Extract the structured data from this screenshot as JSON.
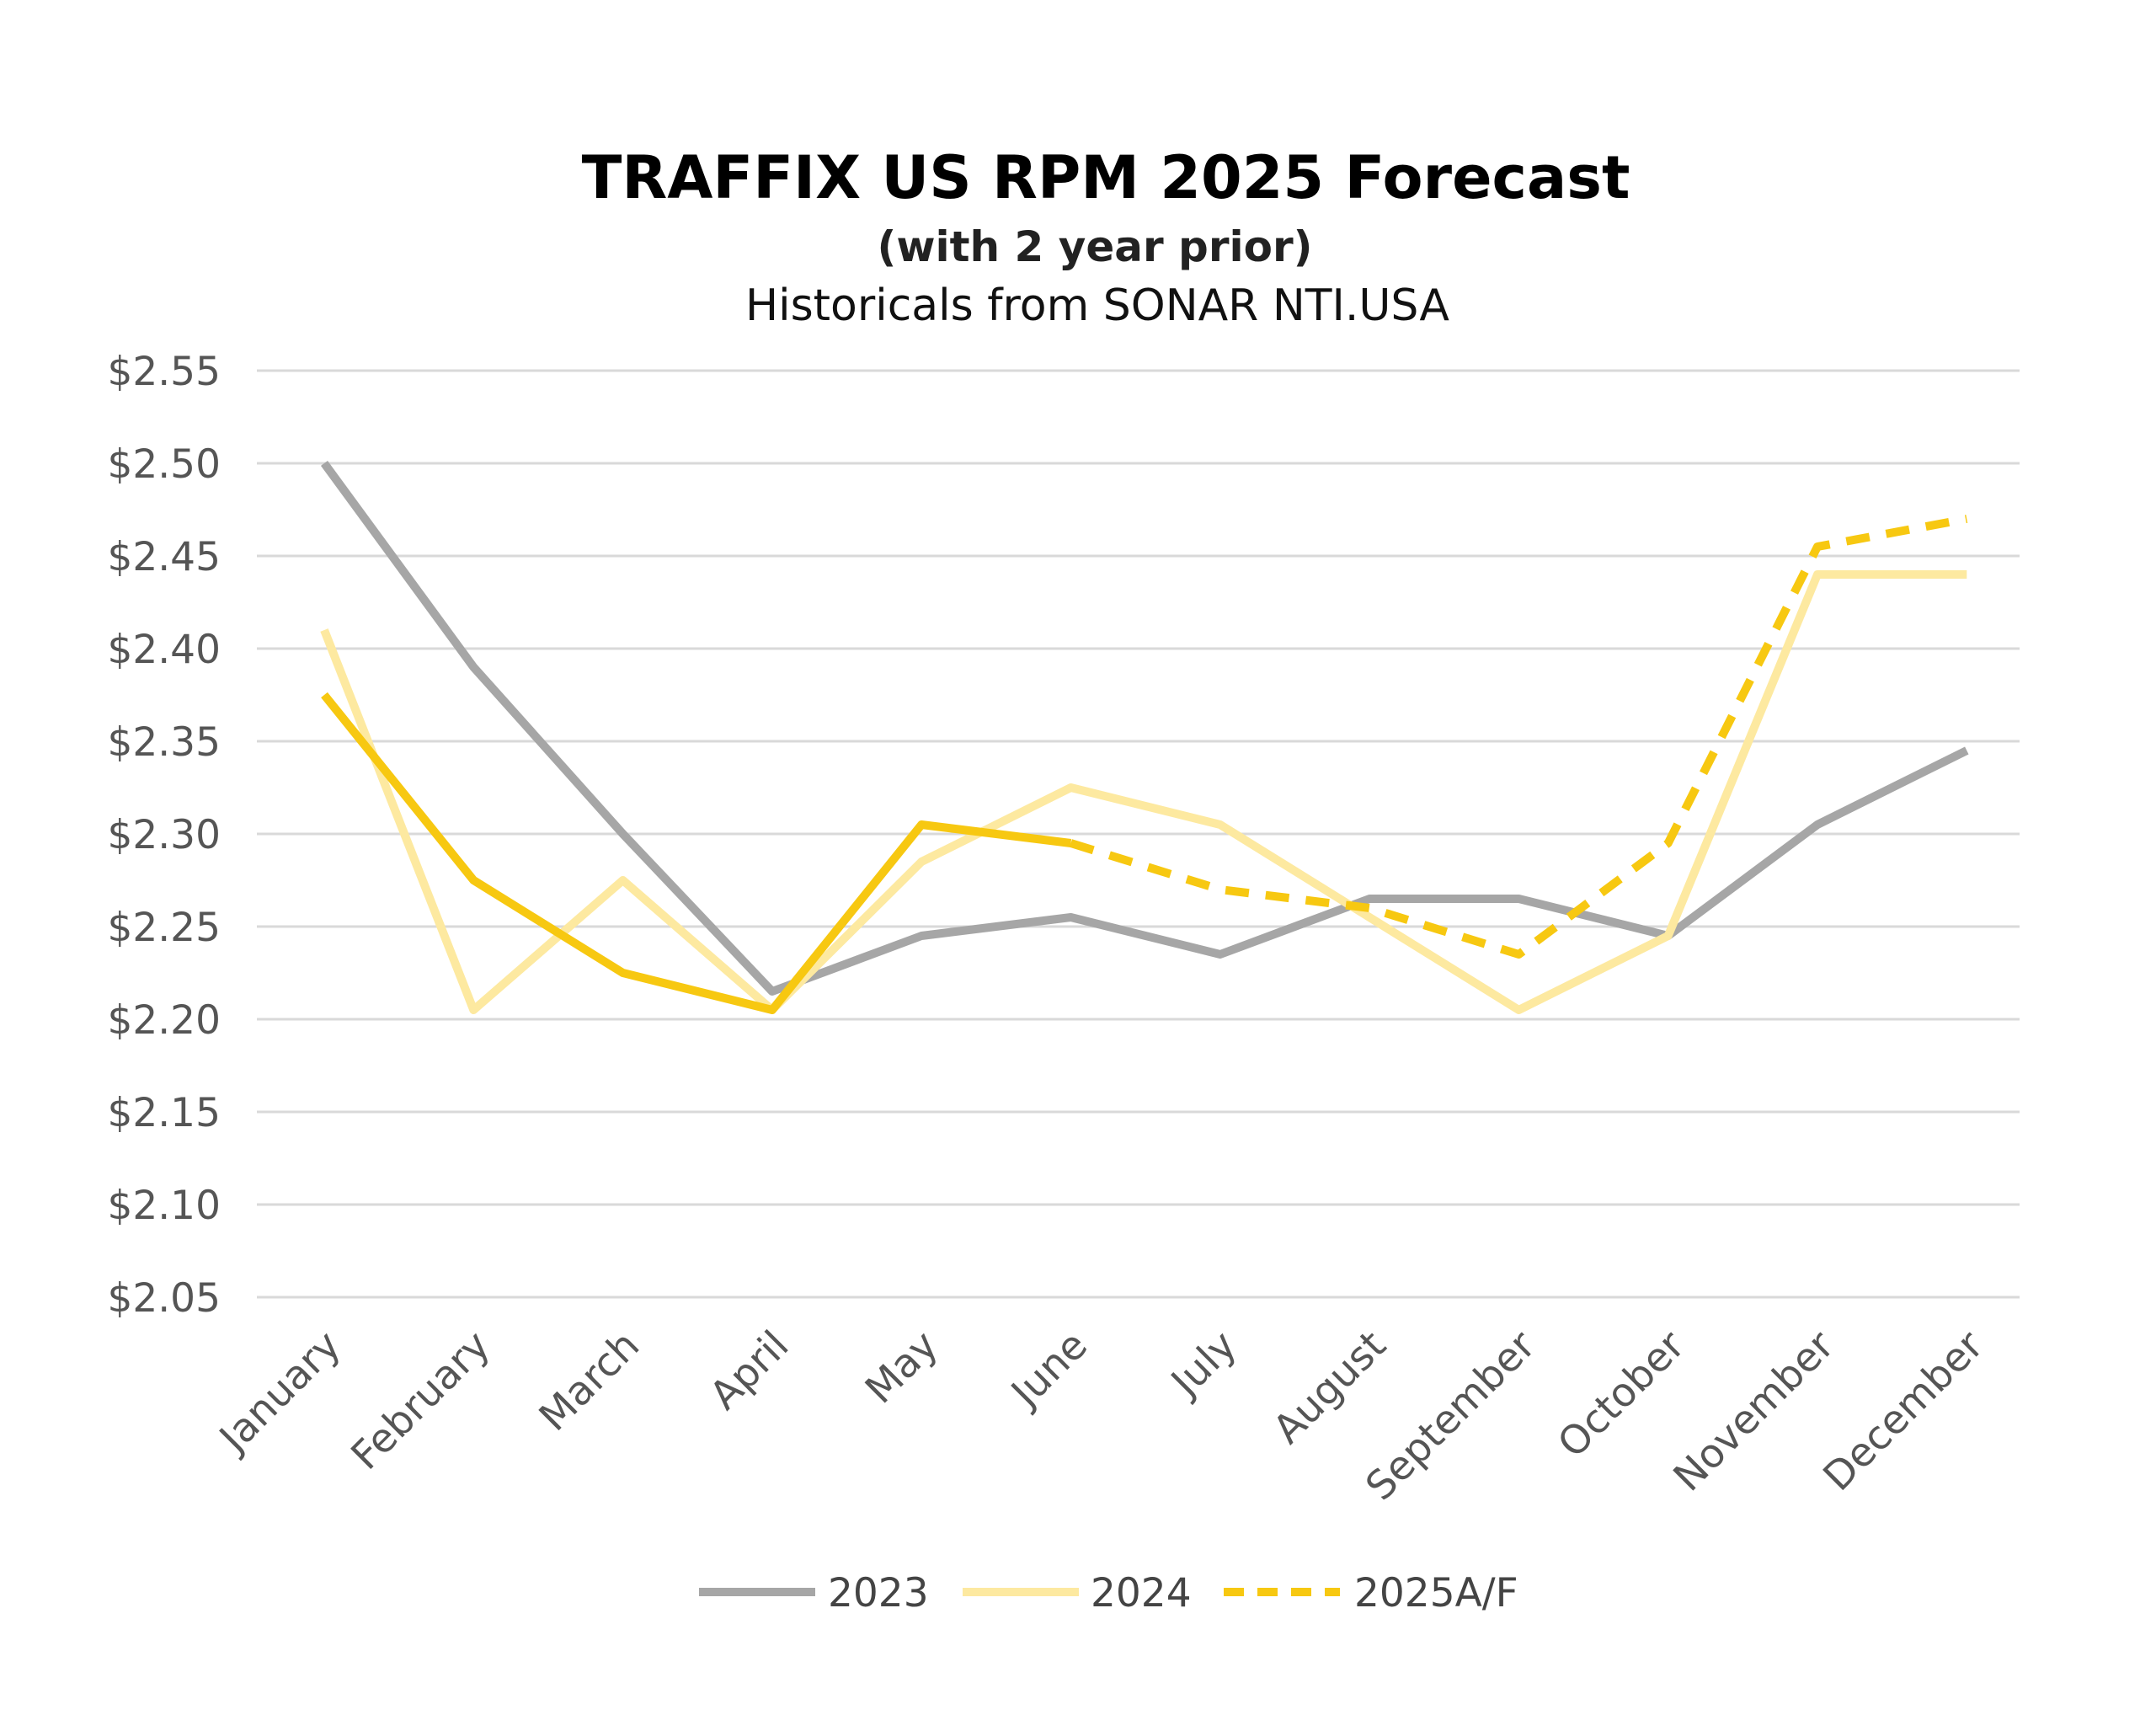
{
  "chart_data": {
    "type": "line",
    "title": "TRAFFIX US RPM 2025 Forecast",
    "subtitle": "(with 2 year prior)",
    "subtitle2": "Historicals from SONAR NTI.USA",
    "xlabel": "",
    "ylabel": "",
    "categories": [
      "January",
      "February",
      "March",
      "April",
      "May",
      "June",
      "July",
      "August",
      "September",
      "October",
      "November",
      "December"
    ],
    "ylim": [
      2.05,
      2.55
    ],
    "yticks": [
      "$2.05",
      "$2.10",
      "$2.15",
      "$2.20",
      "$2.25",
      "$2.30",
      "$2.35",
      "$2.40",
      "$2.45",
      "$2.50",
      "$2.55"
    ],
    "ytick_values": [
      2.05,
      2.1,
      2.15,
      2.2,
      2.25,
      2.3,
      2.35,
      2.4,
      2.45,
      2.5,
      2.55
    ],
    "grid": true,
    "legend_position": "bottom-center",
    "series": [
      {
        "name": "2023",
        "color": "#a6a6a6",
        "style": "solid",
        "values": [
          2.5,
          2.39,
          2.3,
          2.215,
          2.245,
          2.255,
          2.235,
          2.265,
          2.265,
          2.245,
          2.305,
          2.345
        ]
      },
      {
        "name": "2024",
        "color": "#fde9a0",
        "style": "solid",
        "values": [
          2.41,
          2.205,
          2.275,
          2.205,
          2.285,
          2.325,
          2.305,
          2.255,
          2.205,
          2.245,
          2.44,
          2.44
        ]
      },
      {
        "name": "2025A/F",
        "color": "#f7c811",
        "style": "dashed",
        "actual_count": 6,
        "values": [
          2.375,
          2.275,
          2.225,
          2.205,
          2.305,
          2.295,
          2.27,
          2.26,
          2.235,
          2.295,
          2.455,
          2.47
        ]
      }
    ]
  }
}
